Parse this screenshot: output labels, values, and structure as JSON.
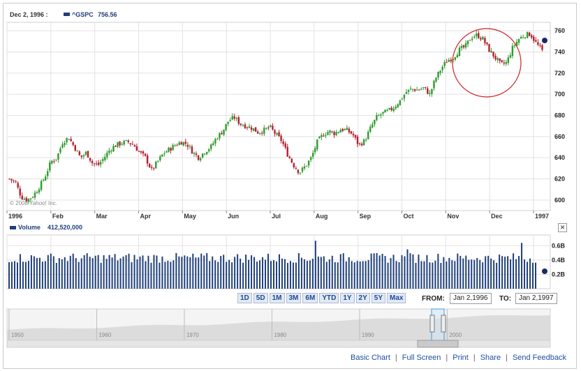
{
  "header": {
    "date": "Dec 2, 1996 :",
    "ticker": "^GSPC",
    "last_value": "756.56",
    "series_color": "#1f3f7a"
  },
  "volume_panel": {
    "label": "Volume",
    "value": "412,520,000"
  },
  "copyright": "© 2008 Yahoo! Inc.",
  "range_buttons": [
    "1D",
    "5D",
    "1M",
    "3M",
    "6M",
    "YTD",
    "1Y",
    "2Y",
    "5Y",
    "Max"
  ],
  "date_range": {
    "from_label": "FROM:",
    "from_value": "Jan 2,1996",
    "to_label": "TO:",
    "to_value": "Jan 2,1997"
  },
  "navigator_years": [
    "1950",
    "1960",
    "1970",
    "1980",
    "1990",
    "2000"
  ],
  "footer_links": [
    "Basic Chart",
    "Full Screen",
    "Print",
    "Share",
    "Send Feedback"
  ],
  "colors": {
    "up": "#2e9d2e",
    "down": "#b51f2f",
    "volume": "#1f3f7a",
    "highlight_circle": "#cc2222",
    "grid": "#e2e2e2"
  },
  "chart_data": {
    "type": "candlestick",
    "ticker": "^GSPC",
    "x_labels": [
      "1996",
      "Feb",
      "Mar",
      "Apr",
      "May",
      "Jun",
      "Jul",
      "Aug",
      "Sep",
      "Oct",
      "Nov",
      "Dec",
      "1997"
    ],
    "y_ticks": [
      600,
      620,
      640,
      660,
      680,
      700,
      720,
      740,
      760
    ],
    "ylim": [
      590,
      768
    ],
    "volume_ticks": [
      "0.6B",
      "0.4B",
      "0.2B"
    ],
    "volume_ylim_billions": [
      0,
      0.75
    ],
    "last_close": 756.56,
    "last_volume": 412520000,
    "closes_weekly": [
      620,
      617,
      603,
      600,
      604,
      612,
      622,
      636,
      640,
      655,
      659,
      650,
      640,
      645,
      635,
      633,
      640,
      648,
      652,
      654,
      655,
      652,
      645,
      640,
      628,
      636,
      644,
      648,
      652,
      655,
      653,
      645,
      640,
      646,
      650,
      659,
      665,
      675,
      678,
      672,
      670,
      668,
      664,
      666,
      669,
      662,
      656,
      643,
      633,
      626,
      632,
      640,
      655,
      662,
      665,
      663,
      667,
      666,
      662,
      652,
      656,
      668,
      678,
      682,
      684,
      688,
      694,
      702,
      705,
      704,
      706,
      700,
      715,
      725,
      732,
      735,
      742,
      745,
      754,
      756,
      752,
      742,
      735,
      728,
      730,
      744,
      752,
      756,
      757,
      748,
      741
    ]
  }
}
